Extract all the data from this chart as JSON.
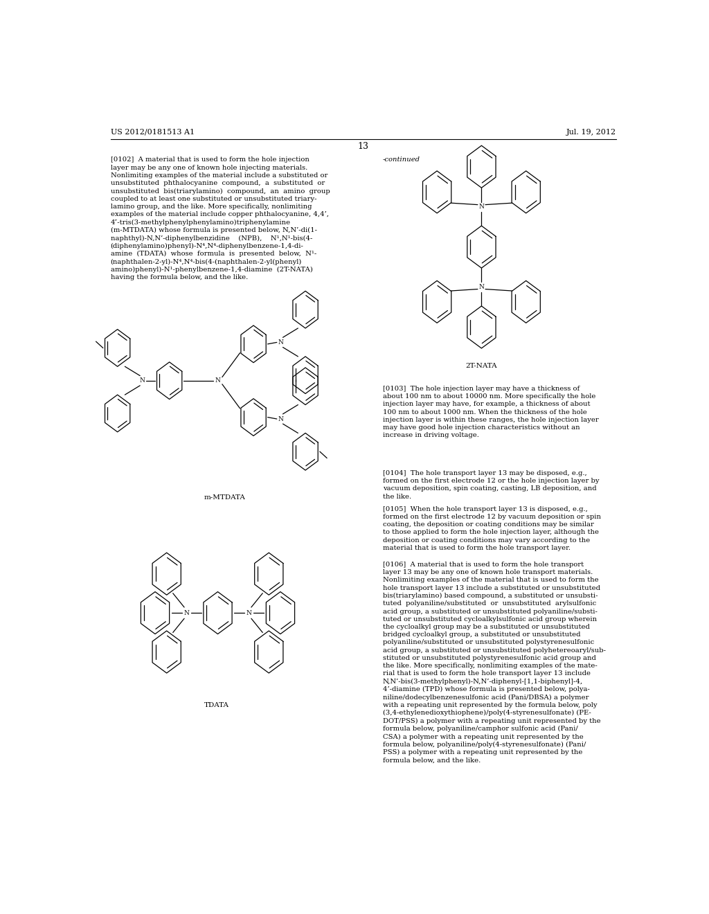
{
  "page_number": "13",
  "patent_number": "US 2012/0181513 A1",
  "patent_date": "Jul. 19, 2012",
  "background_color": "#ffffff",
  "text_color": "#000000",
  "body_text_size": 7.2,
  "label_text_size": 7.5,
  "continued_label": "-continued",
  "label_2T_NATA": "2T-NATA",
  "label_m_MTDATA": "m-MTDATA",
  "label_TDATA": "TDATA",
  "para_102": "[0102]  A material that is used to form the hole injection\nlayer may be any one of known hole injecting materials.\nNonlimiting examples of the material include a substituted or\nunsubstituted  phthalocyanine  compound,  a  substituted  or\nunsubstituted  bis(triarylamino)  compound,  an  amino  group\ncoupled to at least one substituted or unsubstituted triary-\nlamino group, and the like. More specifically, nonlimiting\nexamples of the material include copper phthalocyanine, 4,4’,\n4″-tris(3-methylphenylphenylamino)triphenylamine\n(m-MTDATA) whose formula is presented below, N,N’-di(1-\nnaphthyl)-N,N’-diphenylbenzidine    (NPB),    N¹,N¹-bis(4-\n(diphenylamino)phenyl)-N⁴,N⁴-diphenylbenzene-1,4-di-\namine  (TDATA)  whose  formula  is  presented  below,  N¹-\n(naphthalen-2-yl)-N⁴,N⁴-bis(4-(naphthalen-2-yl(phenyl)\namino)phenyl)-N¹-phenylbenzene-1,4-diamine  (2T-NATA)\nhaving the formula below, and the like.",
  "para_103": "[0103]  The hole injection layer may have a thickness of\nabout 100 nm to about 10000 nm. More specifically the hole\ninjection layer may have, for example, a thickness of about\n100 nm to about 1000 nm. When the thickness of the hole\ninjection layer is within these ranges, the hole injection layer\nmay have good hole injection characteristics without an\nincrease in driving voltage.",
  "para_104": "[0104]  The hole transport layer 13 may be disposed, e.g.,\nformed on the first electrode 12 or the hole injection layer by\nvacuum deposition, spin coating, casting, LB deposition, and\nthe like.",
  "para_105": "[0105]  When the hole transport layer 13 is disposed, e.g.,\nformed on the first electrode 12 by vacuum deposition or spin\ncoating, the deposition or coating conditions may be similar\nto those applied to form the hole injection layer, although the\ndeposition or coating conditions may vary according to the\nmaterial that is used to form the hole transport layer.",
  "para_106": "[0106]  A material that is used to form the hole transport\nlayer 13 may be any one of known hole transport materials.\nNonlimiting examples of the material that is used to form the\nhole transport layer 13 include a substituted or unsubstituted\nbis(triarylamino) based compound, a substituted or unsubsti-\ntuted  polyaniline/substituted  or  unsubstituted  arylsulfonic\nacid group, a substituted or unsubstituted polyaniline/substi-\ntuted or unsubstituted cycloalkylsulfonic acid group wherein\nthe cycloalkyl group may be a substituted or unsubstituted\nbridged cycloalkyl group, a substituted or unsubstituted\npolyaniline/substituted or unsubstituted polystyrenesulfonic\nacid group, a substituted or unsubstituted polyhetereoaryl/sub-\nstituted or unsubstituted polystyrenesulfonic acid group and\nthe like. More specifically, nonlimiting examples of the mate-\nrial that is used to form the hole transport layer 13 include\nN,N’-bis(3-methylphenyl)-N,N’-diphenyl-[1,1-biphenyl]-4,\n4’-diamine (TPD) whose formula is presented below, polya-\nniline/dodecylbenzenesulfonic acid (Pani/DBSA) a polymer\nwith a repeating unit represented by the formula below, poly\n(3,4-ethylenedioxythiophene)/poly(4-styrenesulfonate) (PE-\nDOT/PSS) a polymer with a repeating unit represented by the\nformula below, polyaniline/camphor sulfonic acid (Pani/\nCSA) a polymer with a repeating unit represented by the\nformula below, polyaniline/poly(4-styrenesulfonate) (Pani/\nPSS) a polymer with a repeating unit represented by the\nformula below, and the like."
}
